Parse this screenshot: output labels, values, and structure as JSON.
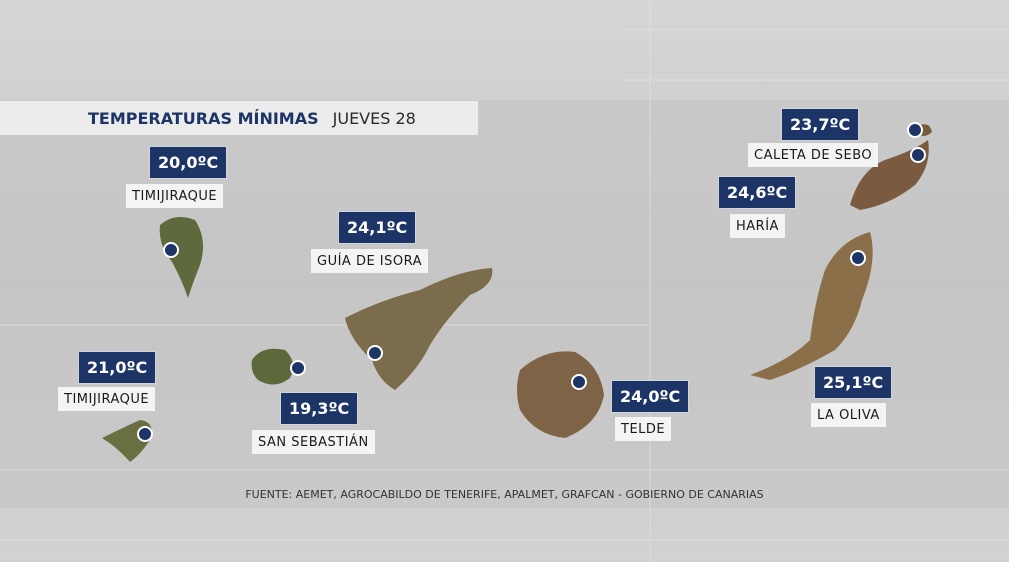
{
  "header": {
    "title": "TEMPERATURAS MÍNIMAS",
    "date": "JUEVES 28"
  },
  "stations": [
    {
      "temperature": "20,0ºC",
      "place": "TIMIJIRAQUE"
    },
    {
      "temperature": "24,1ºC",
      "place": "GUÍA DE ISORA"
    },
    {
      "temperature": "21,0ºC",
      "place": "TIMIJIRAQUE"
    },
    {
      "temperature": "19,3ºC",
      "place": "SAN SEBASTIÁN"
    },
    {
      "temperature": "24,0ºC",
      "place": "TELDE"
    },
    {
      "temperature": "23,7ºC",
      "place": "CALETA DE SEBO"
    },
    {
      "temperature": "24,6ºC",
      "place": "HARÍA"
    },
    {
      "temperature": "25,1ºC",
      "place": "LA OLIVA"
    }
  ],
  "source": "FUENTE: AEMET, AGROCABILDO DE TENERIFE, APALMET, GRAFCAN - GOBIERNO DE CANARIAS"
}
